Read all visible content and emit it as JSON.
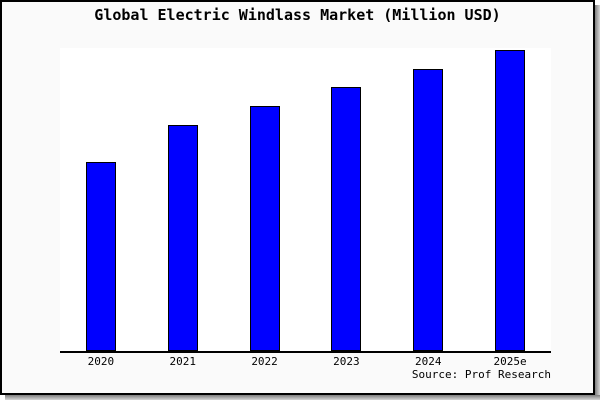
{
  "chart": {
    "title": "Global Electric Windlass Market (Million USD)",
    "source_credit": "Source: Prof Research"
  },
  "chart_data": {
    "type": "bar",
    "title": "Global Electric Windlass Market (Million USD)",
    "categories": [
      "2020",
      "2021",
      "2022",
      "2023",
      "2024",
      "2025e"
    ],
    "values": [
      62.9,
      75.0,
      81.5,
      87.9,
      93.8,
      100
    ],
    "value_note": "relative index estimated from bar pixel heights, 2025e = 100; chart shows no y-axis tick labels",
    "xlabel": "",
    "ylabel": "",
    "ylim": [
      0,
      100.7
    ],
    "grid": false,
    "legend": false,
    "annotations": [
      "Source: Prof Research"
    ]
  },
  "colors": {
    "bar_fill": "#0000ff",
    "bar_border": "#000000",
    "panel_background": "#fafafa",
    "plot_background": "#ffffff",
    "axis_line": "#000000",
    "frame_border": "#000000",
    "frame_shadow": "#7d7d7d"
  }
}
